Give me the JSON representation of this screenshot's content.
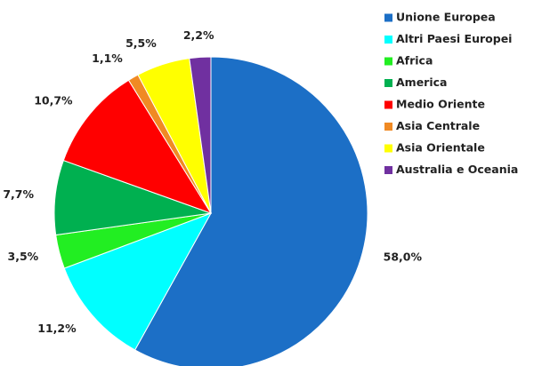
{
  "chart_data": {
    "type": "pie",
    "categories": [
      "Unione Europea",
      "Altri Paesi Europei",
      "Africa",
      "America",
      "Medio Oriente",
      "Asia Centrale",
      "Asia Orientale",
      "Australia e Oceania"
    ],
    "values": [
      58.0,
      11.2,
      3.5,
      7.7,
      10.7,
      1.1,
      5.5,
      2.2
    ],
    "value_labels": [
      "58,0%",
      "11,2%",
      "3,5%",
      "7,7%",
      "10,7%",
      "1,1%",
      "5,5%",
      "2,2%"
    ],
    "colors": [
      "#1c6fc6",
      "#00ffff",
      "#22ee22",
      "#00b050",
      "#ff0000",
      "#f08a24",
      "#ffff00",
      "#7030a0"
    ],
    "legend": "right"
  }
}
